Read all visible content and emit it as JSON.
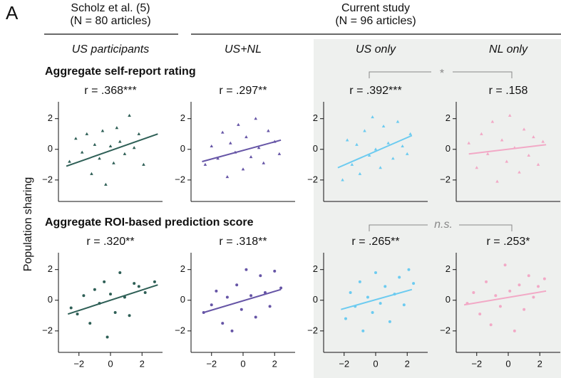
{
  "panel_letter": "A",
  "groups": [
    {
      "title": "Scholz et al. (5)",
      "subtitle": "(N = 80 articles)"
    },
    {
      "title": "Current study",
      "subtitle": "(N = 96 articles)"
    }
  ],
  "columns": [
    "US participants",
    "US+NL",
    "US only",
    "NL only"
  ],
  "rows": [
    "Aggregate self-report rating",
    "Aggregate ROI-based prediction score"
  ],
  "comparisons": [
    "*",
    "n.s."
  ],
  "y_label": "Population sharing",
  "chart_data": [
    {
      "type": "scatter",
      "stat": "r = .368***",
      "marker": "triangle",
      "color": "#2e5f56",
      "xlim": [
        -3.3,
        3.3
      ],
      "ylim": [
        -3.4,
        3.1
      ],
      "yticks": [
        {
          "value": -2,
          "label": "−2"
        },
        0,
        2
      ],
      "xticks": [],
      "x": [
        -2.6,
        -2.2,
        -1.8,
        -1.5,
        -1.2,
        -1.0,
        -0.7,
        -0.5,
        -0.3,
        0,
        0.2,
        0.4,
        0.6,
        0.9,
        1.2,
        1.5,
        1.8,
        2.1
      ],
      "y": [
        -0.8,
        0.7,
        -0.2,
        1.0,
        -1.6,
        0.3,
        -0.6,
        1.2,
        -2.3,
        0.2,
        -0.9,
        1.4,
        0.5,
        -0.3,
        2.2,
        0.1,
        1.0,
        -1.0
      ],
      "fit": {
        "x": [
          -2.8,
          3
        ],
        "y": [
          -1.1,
          1.0
        ]
      }
    },
    {
      "type": "scatter",
      "stat": "r = .297**",
      "marker": "triangle",
      "color": "#6655a6",
      "xlim": [
        -3.3,
        3.3
      ],
      "ylim": [
        -3.4,
        3.1
      ],
      "yticks": [
        {
          "value": -2,
          "label": "−2"
        },
        0,
        2
      ],
      "xticks": [],
      "x": [
        -2.4,
        -2.0,
        -1.6,
        -1.3,
        -1.0,
        -0.8,
        -0.5,
        -0.3,
        0,
        0.2,
        0.5,
        0.8,
        1.0,
        1.3,
        1.6,
        2.0,
        2.3
      ],
      "y": [
        -1.0,
        0.2,
        -0.6,
        1.1,
        -1.8,
        0.4,
        -0.2,
        1.6,
        -1.3,
        0.8,
        -0.5,
        2.0,
        0.1,
        -0.9,
        1.2,
        0.5,
        -0.3
      ],
      "fit": {
        "x": [
          -2.6,
          2.4
        ],
        "y": [
          -0.8,
          0.6
        ]
      }
    },
    {
      "type": "scatter",
      "stat": "r = .392***",
      "marker": "triangle",
      "color": "#6ccbf0",
      "xlim": [
        -3.3,
        3.3
      ],
      "ylim": [
        -3.4,
        3.1
      ],
      "yticks": [
        {
          "value": -2,
          "label": "−2"
        },
        0,
        2
      ],
      "xticks": [],
      "x": [
        -2.1,
        -1.8,
        -1.5,
        -1.2,
        -1.0,
        -0.7,
        -0.4,
        -0.2,
        0,
        0.3,
        0.5,
        0.8,
        1.1,
        1.4,
        1.7,
        2.0,
        2.2
      ],
      "y": [
        -2.0,
        0.6,
        -1.0,
        0.3,
        -1.6,
        1.2,
        -0.4,
        2.1,
        0.0,
        -1.2,
        1.5,
        0.4,
        -0.6,
        1.8,
        0.2,
        -0.3,
        1.0
      ],
      "fit": {
        "x": [
          -2.4,
          2.3
        ],
        "y": [
          -1.2,
          0.9
        ]
      }
    },
    {
      "type": "scatter",
      "stat": "r = .158",
      "marker": "triangle",
      "color": "#f2a9c6",
      "xlim": [
        -3.3,
        3.3
      ],
      "ylim": [
        -3.4,
        3.1
      ],
      "yticks": [
        {
          "value": -2,
          "label": "−2"
        },
        0,
        2
      ],
      "xticks": [],
      "x": [
        -2.5,
        -2.0,
        -1.7,
        -1.3,
        -1.0,
        -0.7,
        -0.4,
        -0.1,
        0.1,
        0.4,
        0.7,
        1.0,
        1.3,
        1.6,
        1.9,
        2.2
      ],
      "y": [
        0.4,
        -1.2,
        1.0,
        -0.3,
        1.8,
        -2.1,
        0.6,
        -0.8,
        2.2,
        0.1,
        -1.5,
        1.3,
        -0.4,
        0.8,
        -1.0,
        0.5
      ],
      "fit": {
        "x": [
          -2.5,
          2.4
        ],
        "y": [
          -0.3,
          0.3
        ]
      }
    },
    {
      "type": "scatter",
      "stat": "r = .320**",
      "marker": "circle",
      "color": "#2e5f56",
      "xlim": [
        -3.3,
        3.3
      ],
      "ylim": [
        -3.4,
        3.1
      ],
      "yticks": [
        {
          "value": -2,
          "label": "−2"
        },
        0,
        2
      ],
      "xticks": [
        {
          "value": -2,
          "label": "−2"
        },
        0,
        2
      ],
      "x": [
        -2.5,
        -2.1,
        -1.7,
        -1.3,
        -1.0,
        -0.7,
        -0.4,
        -0.2,
        0,
        0.3,
        0.6,
        0.9,
        1.2,
        1.5,
        1.8,
        2.2,
        2.8
      ],
      "y": [
        -0.5,
        -0.9,
        0.3,
        -1.5,
        0.7,
        -0.2,
        1.2,
        -2.4,
        0.4,
        -0.8,
        1.8,
        0.2,
        -1.0,
        1.1,
        0.9,
        0.5,
        1.2
      ],
      "fit": {
        "x": [
          -2.7,
          3
        ],
        "y": [
          -0.9,
          1.0
        ]
      }
    },
    {
      "type": "scatter",
      "stat": "r = .318**",
      "marker": "circle",
      "color": "#6655a6",
      "xlim": [
        -3.3,
        3.3
      ],
      "ylim": [
        -3.4,
        3.1
      ],
      "yticks": [
        {
          "value": -2,
          "label": "−2"
        },
        0,
        2
      ],
      "xticks": [
        {
          "value": -2,
          "label": "−2"
        },
        0,
        2
      ],
      "x": [
        -2.5,
        -2.0,
        -1.7,
        -1.3,
        -1.0,
        -0.7,
        -0.4,
        -0.1,
        0.2,
        0.5,
        0.8,
        1.1,
        1.4,
        1.7,
        2.0,
        2.4
      ],
      "y": [
        -0.8,
        -0.3,
        0.6,
        -1.5,
        0.2,
        -2.0,
        1.0,
        -0.6,
        2.0,
        0.3,
        -1.1,
        1.6,
        0.5,
        -0.4,
        1.9,
        0.8
      ],
      "fit": {
        "x": [
          -2.5,
          2.4
        ],
        "y": [
          -0.8,
          0.7
        ]
      }
    },
    {
      "type": "scatter",
      "stat": "r = .265**",
      "marker": "circle",
      "color": "#6ccbf0",
      "xlim": [
        -3.3,
        3.3
      ],
      "ylim": [
        -3.4,
        3.1
      ],
      "yticks": [
        {
          "value": -2,
          "label": "−2"
        },
        0,
        2
      ],
      "xticks": [
        {
          "value": -2,
          "label": "−2"
        },
        0,
        2
      ],
      "x": [
        -1.9,
        -1.6,
        -1.3,
        -1.0,
        -0.8,
        -0.5,
        -0.2,
        0,
        0.3,
        0.6,
        0.9,
        1.2,
        1.5,
        1.8,
        2.1,
        2.4
      ],
      "y": [
        -1.2,
        0.5,
        -0.4,
        1.2,
        -2.0,
        0.2,
        -0.8,
        1.8,
        -0.2,
        0.9,
        -1.4,
        0.4,
        1.5,
        -0.3,
        2.0,
        1.1
      ],
      "fit": {
        "x": [
          -2.2,
          2.3
        ],
        "y": [
          -0.6,
          0.7
        ]
      }
    },
    {
      "type": "scatter",
      "stat": "r = .253*",
      "marker": "circle",
      "color": "#f2a9c6",
      "xlim": [
        -3.3,
        3.3
      ],
      "ylim": [
        -3.4,
        3.1
      ],
      "yticks": [
        {
          "value": -2,
          "label": "−2"
        },
        0,
        2
      ],
      "xticks": [
        {
          "value": -2,
          "label": "−2"
        },
        0,
        2
      ],
      "x": [
        -2.6,
        -2.2,
        -1.8,
        -1.4,
        -1.1,
        -0.8,
        -0.5,
        -0.2,
        0.1,
        0.4,
        0.7,
        1.0,
        1.3,
        1.6,
        1.9,
        2.3
      ],
      "y": [
        -0.2,
        0.5,
        -0.9,
        1.2,
        -1.6,
        0.3,
        -0.4,
        2.3,
        0.6,
        -2.0,
        1.0,
        -0.6,
        1.6,
        0.2,
        0.9,
        1.4
      ],
      "fit": {
        "x": [
          -2.8,
          2.4
        ],
        "y": [
          -0.3,
          0.6
        ]
      }
    }
  ]
}
